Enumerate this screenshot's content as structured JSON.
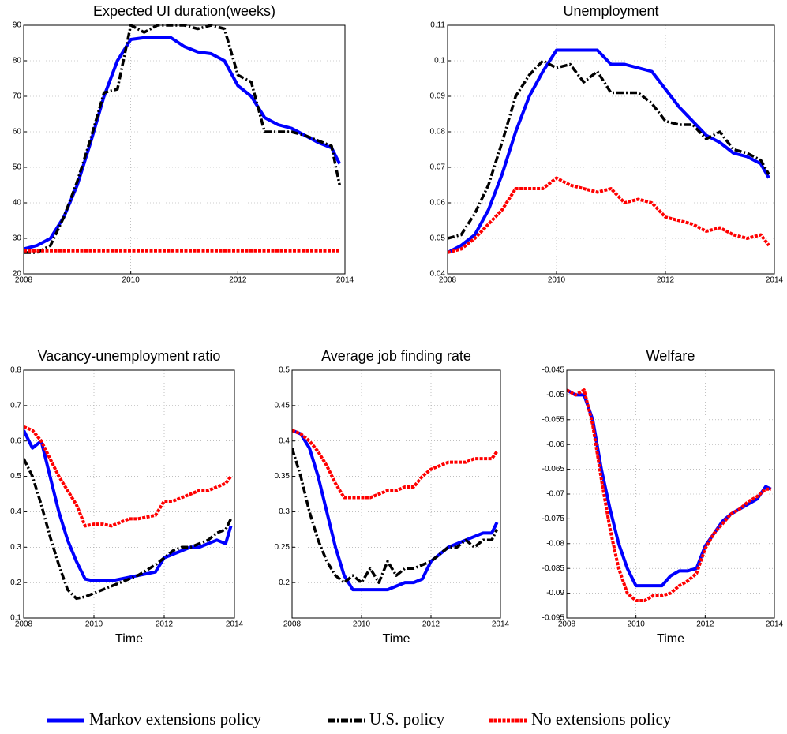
{
  "chart_data": [
    {
      "type": "line",
      "title": "Expected UI duration(weeks)",
      "grid": true,
      "xlim": [
        2008,
        2014
      ],
      "xticks": [
        2008,
        2010,
        2012,
        2014
      ],
      "ylim": [
        20,
        90
      ],
      "yticks": [
        20,
        30,
        40,
        50,
        60,
        70,
        80,
        90
      ],
      "x": [
        2008,
        2008.25,
        2008.5,
        2008.75,
        2009,
        2009.25,
        2009.5,
        2009.75,
        2010,
        2010.25,
        2010.5,
        2010.75,
        2011,
        2011.25,
        2011.5,
        2011.75,
        2012,
        2012.25,
        2012.5,
        2012.75,
        2013,
        2013.25,
        2013.5,
        2013.75,
        2013.9
      ],
      "series": [
        {
          "color": "#0000ff",
          "dash": "solid",
          "values": [
            27,
            28,
            30,
            36,
            45,
            57,
            70,
            80,
            86,
            86.5,
            86.5,
            86.5,
            84,
            82.5,
            82,
            80,
            73,
            70,
            64,
            62,
            61,
            59,
            57,
            55.5,
            51
          ]
        },
        {
          "color": "#000000",
          "dash": "dashdot",
          "values": [
            26,
            26,
            28,
            36,
            46,
            58,
            71,
            72,
            90,
            88,
            90,
            90,
            90,
            89,
            90,
            89,
            76,
            74,
            60,
            60,
            60,
            59,
            57.5,
            56,
            45
          ]
        },
        {
          "color": "#ff0000",
          "dash": "dotted",
          "values": [
            26.5,
            26.5,
            26.5,
            26.5,
            26.5,
            26.5,
            26.5,
            26.5,
            26.5,
            26.5,
            26.5,
            26.5,
            26.5,
            26.5,
            26.5,
            26.5,
            26.5,
            26.5,
            26.5,
            26.5,
            26.5,
            26.5,
            26.5,
            26.5,
            26.5
          ]
        }
      ]
    },
    {
      "type": "line",
      "title": "Unemployment",
      "grid": true,
      "xlim": [
        2008,
        2014
      ],
      "xticks": [
        2008,
        2010,
        2012,
        2014
      ],
      "ylim": [
        0.04,
        0.11
      ],
      "yticks": [
        0.04,
        0.05,
        0.06,
        0.07,
        0.08,
        0.09,
        0.1,
        0.11
      ],
      "x": [
        2008,
        2008.25,
        2008.5,
        2008.75,
        2009,
        2009.25,
        2009.5,
        2009.75,
        2010,
        2010.25,
        2010.5,
        2010.75,
        2011,
        2011.25,
        2011.5,
        2011.75,
        2012,
        2012.25,
        2012.5,
        2012.75,
        2013,
        2013.25,
        2013.5,
        2013.75,
        2013.9
      ],
      "series": [
        {
          "color": "#0000ff",
          "dash": "solid",
          "values": [
            0.046,
            0.048,
            0.051,
            0.058,
            0.068,
            0.08,
            0.09,
            0.097,
            0.103,
            0.103,
            0.103,
            0.103,
            0.099,
            0.099,
            0.098,
            0.097,
            0.092,
            0.087,
            0.083,
            0.079,
            0.077,
            0.074,
            0.073,
            0.071,
            0.067
          ]
        },
        {
          "color": "#000000",
          "dash": "dashdot",
          "values": [
            0.05,
            0.051,
            0.057,
            0.065,
            0.077,
            0.09,
            0.096,
            0.1,
            0.098,
            0.099,
            0.094,
            0.097,
            0.091,
            0.091,
            0.091,
            0.088,
            0.083,
            0.082,
            0.082,
            0.078,
            0.08,
            0.075,
            0.074,
            0.072,
            0.068
          ]
        },
        {
          "color": "#ff0000",
          "dash": "dotted",
          "values": [
            0.046,
            0.047,
            0.05,
            0.054,
            0.058,
            0.064,
            0.064,
            0.064,
            0.067,
            0.065,
            0.064,
            0.063,
            0.064,
            0.06,
            0.061,
            0.06,
            0.056,
            0.055,
            0.054,
            0.052,
            0.053,
            0.051,
            0.05,
            0.051,
            0.048
          ]
        }
      ]
    },
    {
      "type": "line",
      "title": "Vacancy-unemployment ratio",
      "x_label": "Time",
      "grid": true,
      "xlim": [
        2008,
        2014
      ],
      "xticks": [
        2008,
        2010,
        2012,
        2014
      ],
      "ylim": [
        0.1,
        0.8
      ],
      "yticks": [
        0.1,
        0.2,
        0.3,
        0.4,
        0.5,
        0.6,
        0.7,
        0.8
      ],
      "x": [
        2008,
        2008.25,
        2008.5,
        2008.75,
        2009,
        2009.25,
        2009.5,
        2009.75,
        2010,
        2010.25,
        2010.5,
        2010.75,
        2011,
        2011.25,
        2011.5,
        2011.75,
        2012,
        2012.25,
        2012.5,
        2012.75,
        2013,
        2013.25,
        2013.5,
        2013.75,
        2013.9
      ],
      "series": [
        {
          "color": "#0000ff",
          "dash": "solid",
          "values": [
            0.63,
            0.58,
            0.6,
            0.5,
            0.4,
            0.32,
            0.26,
            0.21,
            0.205,
            0.205,
            0.205,
            0.21,
            0.215,
            0.22,
            0.225,
            0.23,
            0.27,
            0.28,
            0.29,
            0.3,
            0.3,
            0.31,
            0.32,
            0.31,
            0.36
          ]
        },
        {
          "color": "#000000",
          "dash": "dashdot",
          "values": [
            0.55,
            0.5,
            0.42,
            0.33,
            0.25,
            0.18,
            0.155,
            0.16,
            0.17,
            0.18,
            0.19,
            0.2,
            0.21,
            0.22,
            0.235,
            0.25,
            0.27,
            0.29,
            0.3,
            0.3,
            0.31,
            0.32,
            0.34,
            0.35,
            0.38
          ]
        },
        {
          "color": "#ff0000",
          "dash": "dotted",
          "values": [
            0.64,
            0.63,
            0.6,
            0.55,
            0.5,
            0.46,
            0.42,
            0.36,
            0.365,
            0.365,
            0.36,
            0.37,
            0.38,
            0.38,
            0.385,
            0.39,
            0.43,
            0.43,
            0.44,
            0.45,
            0.46,
            0.46,
            0.47,
            0.48,
            0.5
          ]
        }
      ]
    },
    {
      "type": "line",
      "title": "Average job finding rate",
      "x_label": "Time",
      "grid": true,
      "xlim": [
        2008,
        2014
      ],
      "xticks": [
        2008,
        2010,
        2012,
        2014
      ],
      "ylim": [
        0.15,
        0.5
      ],
      "yticks": [
        0.2,
        0.25,
        0.3,
        0.35,
        0.4,
        0.45,
        0.5
      ],
      "x": [
        2008,
        2008.25,
        2008.5,
        2008.75,
        2009,
        2009.25,
        2009.5,
        2009.75,
        2010,
        2010.25,
        2010.5,
        2010.75,
        2011,
        2011.25,
        2011.5,
        2011.75,
        2012,
        2012.25,
        2012.5,
        2012.75,
        2013,
        2013.25,
        2013.5,
        2013.75,
        2013.9
      ],
      "series": [
        {
          "color": "#0000ff",
          "dash": "solid",
          "values": [
            0.415,
            0.41,
            0.39,
            0.35,
            0.3,
            0.25,
            0.21,
            0.19,
            0.19,
            0.19,
            0.19,
            0.19,
            0.195,
            0.2,
            0.2,
            0.205,
            0.23,
            0.24,
            0.25,
            0.255,
            0.26,
            0.265,
            0.27,
            0.27,
            0.285
          ]
        },
        {
          "color": "#000000",
          "dash": "dashdot",
          "values": [
            0.39,
            0.35,
            0.3,
            0.26,
            0.23,
            0.21,
            0.2,
            0.21,
            0.2,
            0.22,
            0.2,
            0.23,
            0.21,
            0.22,
            0.22,
            0.225,
            0.23,
            0.24,
            0.25,
            0.25,
            0.26,
            0.25,
            0.26,
            0.26,
            0.275
          ]
        },
        {
          "color": "#ff0000",
          "dash": "dotted",
          "values": [
            0.415,
            0.41,
            0.4,
            0.385,
            0.365,
            0.34,
            0.32,
            0.32,
            0.32,
            0.32,
            0.325,
            0.33,
            0.33,
            0.335,
            0.335,
            0.35,
            0.36,
            0.365,
            0.37,
            0.37,
            0.37,
            0.375,
            0.375,
            0.375,
            0.385
          ]
        }
      ]
    },
    {
      "type": "line",
      "title": "Welfare",
      "x_label": "Time",
      "grid": true,
      "xlim": [
        2008,
        2014
      ],
      "xticks": [
        2008,
        2010,
        2012,
        2014
      ],
      "ylim": [
        -0.095,
        -0.045
      ],
      "yticks": [
        -0.095,
        -0.09,
        -0.085,
        -0.08,
        -0.075,
        -0.07,
        -0.065,
        -0.06,
        -0.055,
        -0.05,
        -0.045
      ],
      "x": [
        2008,
        2008.25,
        2008.5,
        2008.75,
        2009,
        2009.25,
        2009.5,
        2009.75,
        2010,
        2010.25,
        2010.5,
        2010.75,
        2011,
        2011.25,
        2011.5,
        2011.75,
        2012,
        2012.25,
        2012.5,
        2012.75,
        2013,
        2013.25,
        2013.5,
        2013.75,
        2013.9
      ],
      "series": [
        {
          "color": "#0000ff",
          "dash": "solid",
          "values": [
            -0.049,
            -0.05,
            -0.05,
            -0.055,
            -0.065,
            -0.073,
            -0.08,
            -0.085,
            -0.0885,
            -0.0885,
            -0.0885,
            -0.0885,
            -0.0865,
            -0.0855,
            -0.0855,
            -0.085,
            -0.0805,
            -0.078,
            -0.0755,
            -0.074,
            -0.073,
            -0.072,
            -0.071,
            -0.0685,
            -0.069
          ]
        },
        {
          "color": "#ff0000",
          "dash": "dotted",
          "values": [
            -0.049,
            -0.05,
            -0.049,
            -0.056,
            -0.067,
            -0.077,
            -0.085,
            -0.09,
            -0.0915,
            -0.0915,
            -0.0905,
            -0.0905,
            -0.09,
            -0.0885,
            -0.0875,
            -0.086,
            -0.081,
            -0.078,
            -0.076,
            -0.074,
            -0.073,
            -0.0715,
            -0.0705,
            -0.069,
            -0.069
          ]
        }
      ]
    }
  ],
  "legend": {
    "entries": [
      {
        "name": "Markov extensions policy",
        "color": "#0000ff",
        "dash": "solid"
      },
      {
        "name": "U.S. policy",
        "color": "#000000",
        "dash": "dashdot"
      },
      {
        "name": "No extensions policy",
        "color": "#ff0000",
        "dash": "dotted"
      }
    ]
  }
}
